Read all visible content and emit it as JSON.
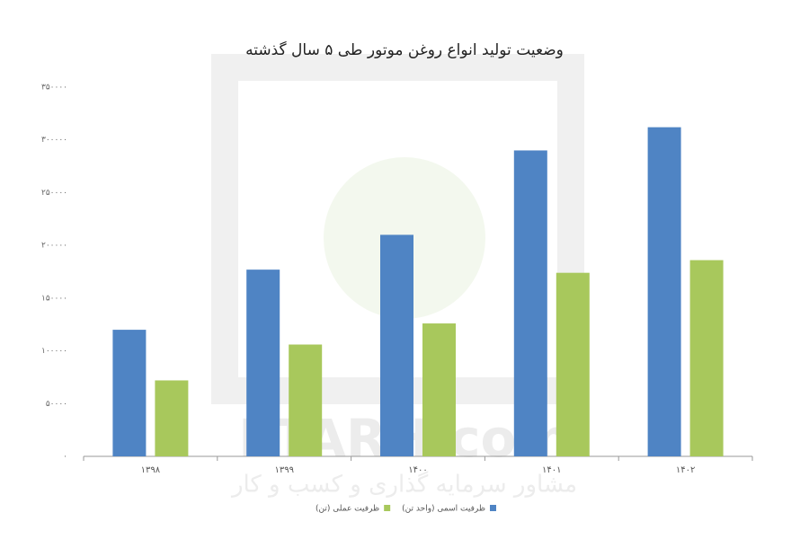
{
  "watermark": {
    "brand": "ETARH.com",
    "tagline": "مشاور سرمایه گذاری و کسب و کار"
  },
  "chart_data": {
    "type": "bar",
    "title": "وضعیت تولید انواع روغن موتور طی ۵ سال گذشته",
    "categories": [
      "۱۳۹۸",
      "۱۳۹۹",
      "۱۴۰۰",
      "۱۴۰۱",
      "۱۴۰۲"
    ],
    "series": [
      {
        "name": "ظرفیت اسمی (واحد تن)",
        "color": "#4f84c4",
        "values": [
          120000,
          177000,
          210000,
          290000,
          312000
        ]
      },
      {
        "name": "ظرفیت عملی (تن)",
        "color": "#a8c85c",
        "values": [
          72000,
          106000,
          126000,
          174000,
          186000
        ]
      }
    ],
    "ylim": [
      0,
      350000
    ],
    "yticks": [
      {
        "value": 0,
        "label": "۰"
      },
      {
        "value": 50000,
        "label": "۵۰۰۰۰"
      },
      {
        "value": 100000,
        "label": "۱۰۰۰۰۰"
      },
      {
        "value": 150000,
        "label": "۱۵۰۰۰۰"
      },
      {
        "value": 200000,
        "label": "۲۰۰۰۰۰"
      },
      {
        "value": 250000,
        "label": "۲۵۰۰۰۰"
      },
      {
        "value": 300000,
        "label": "۳۰۰۰۰۰"
      },
      {
        "value": 350000,
        "label": "۳۵۰۰۰۰"
      }
    ],
    "grid": false,
    "legend": "bottom"
  }
}
